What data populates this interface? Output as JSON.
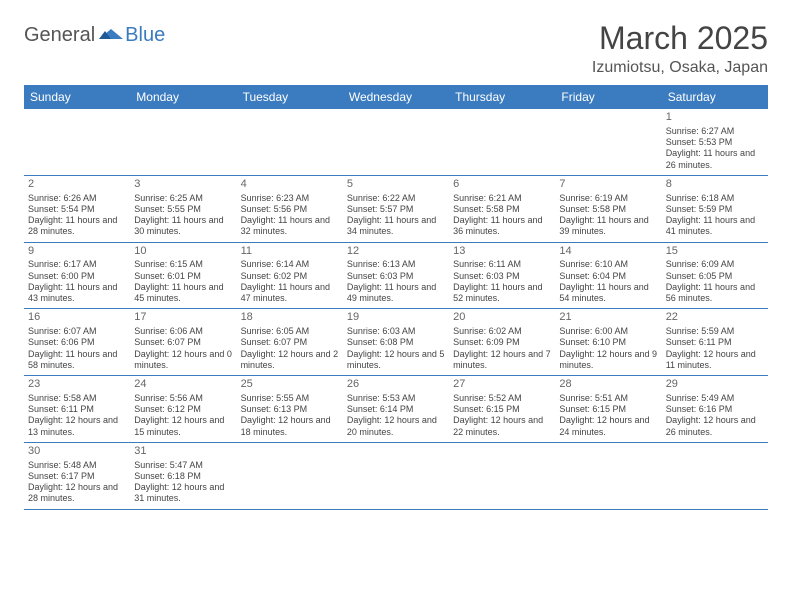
{
  "brand": {
    "general": "General",
    "blue": "Blue"
  },
  "header": {
    "month_title": "March 2025",
    "location": "Izumiotsu, Osaka, Japan"
  },
  "colors": {
    "header_bg": "#3b7bbf",
    "header_fg": "#ffffff",
    "cell_border": "#3b7bbf",
    "text": "#444444",
    "day_num": "#666666"
  },
  "typography": {
    "title_fontsize": 32,
    "location_fontsize": 16,
    "dayname_fontsize": 12,
    "cell_fontsize": 9
  },
  "day_names": [
    "Sunday",
    "Monday",
    "Tuesday",
    "Wednesday",
    "Thursday",
    "Friday",
    "Saturday"
  ],
  "weeks": [
    [
      null,
      null,
      null,
      null,
      null,
      null,
      {
        "n": "1",
        "sr": "Sunrise: 6:27 AM",
        "ss": "Sunset: 5:53 PM",
        "dl": "Daylight: 11 hours and 26 minutes."
      }
    ],
    [
      {
        "n": "2",
        "sr": "Sunrise: 6:26 AM",
        "ss": "Sunset: 5:54 PM",
        "dl": "Daylight: 11 hours and 28 minutes."
      },
      {
        "n": "3",
        "sr": "Sunrise: 6:25 AM",
        "ss": "Sunset: 5:55 PM",
        "dl": "Daylight: 11 hours and 30 minutes."
      },
      {
        "n": "4",
        "sr": "Sunrise: 6:23 AM",
        "ss": "Sunset: 5:56 PM",
        "dl": "Daylight: 11 hours and 32 minutes."
      },
      {
        "n": "5",
        "sr": "Sunrise: 6:22 AM",
        "ss": "Sunset: 5:57 PM",
        "dl": "Daylight: 11 hours and 34 minutes."
      },
      {
        "n": "6",
        "sr": "Sunrise: 6:21 AM",
        "ss": "Sunset: 5:58 PM",
        "dl": "Daylight: 11 hours and 36 minutes."
      },
      {
        "n": "7",
        "sr": "Sunrise: 6:19 AM",
        "ss": "Sunset: 5:58 PM",
        "dl": "Daylight: 11 hours and 39 minutes."
      },
      {
        "n": "8",
        "sr": "Sunrise: 6:18 AM",
        "ss": "Sunset: 5:59 PM",
        "dl": "Daylight: 11 hours and 41 minutes."
      }
    ],
    [
      {
        "n": "9",
        "sr": "Sunrise: 6:17 AM",
        "ss": "Sunset: 6:00 PM",
        "dl": "Daylight: 11 hours and 43 minutes."
      },
      {
        "n": "10",
        "sr": "Sunrise: 6:15 AM",
        "ss": "Sunset: 6:01 PM",
        "dl": "Daylight: 11 hours and 45 minutes."
      },
      {
        "n": "11",
        "sr": "Sunrise: 6:14 AM",
        "ss": "Sunset: 6:02 PM",
        "dl": "Daylight: 11 hours and 47 minutes."
      },
      {
        "n": "12",
        "sr": "Sunrise: 6:13 AM",
        "ss": "Sunset: 6:03 PM",
        "dl": "Daylight: 11 hours and 49 minutes."
      },
      {
        "n": "13",
        "sr": "Sunrise: 6:11 AM",
        "ss": "Sunset: 6:03 PM",
        "dl": "Daylight: 11 hours and 52 minutes."
      },
      {
        "n": "14",
        "sr": "Sunrise: 6:10 AM",
        "ss": "Sunset: 6:04 PM",
        "dl": "Daylight: 11 hours and 54 minutes."
      },
      {
        "n": "15",
        "sr": "Sunrise: 6:09 AM",
        "ss": "Sunset: 6:05 PM",
        "dl": "Daylight: 11 hours and 56 minutes."
      }
    ],
    [
      {
        "n": "16",
        "sr": "Sunrise: 6:07 AM",
        "ss": "Sunset: 6:06 PM",
        "dl": "Daylight: 11 hours and 58 minutes."
      },
      {
        "n": "17",
        "sr": "Sunrise: 6:06 AM",
        "ss": "Sunset: 6:07 PM",
        "dl": "Daylight: 12 hours and 0 minutes."
      },
      {
        "n": "18",
        "sr": "Sunrise: 6:05 AM",
        "ss": "Sunset: 6:07 PM",
        "dl": "Daylight: 12 hours and 2 minutes."
      },
      {
        "n": "19",
        "sr": "Sunrise: 6:03 AM",
        "ss": "Sunset: 6:08 PM",
        "dl": "Daylight: 12 hours and 5 minutes."
      },
      {
        "n": "20",
        "sr": "Sunrise: 6:02 AM",
        "ss": "Sunset: 6:09 PM",
        "dl": "Daylight: 12 hours and 7 minutes."
      },
      {
        "n": "21",
        "sr": "Sunrise: 6:00 AM",
        "ss": "Sunset: 6:10 PM",
        "dl": "Daylight: 12 hours and 9 minutes."
      },
      {
        "n": "22",
        "sr": "Sunrise: 5:59 AM",
        "ss": "Sunset: 6:11 PM",
        "dl": "Daylight: 12 hours and 11 minutes."
      }
    ],
    [
      {
        "n": "23",
        "sr": "Sunrise: 5:58 AM",
        "ss": "Sunset: 6:11 PM",
        "dl": "Daylight: 12 hours and 13 minutes."
      },
      {
        "n": "24",
        "sr": "Sunrise: 5:56 AM",
        "ss": "Sunset: 6:12 PM",
        "dl": "Daylight: 12 hours and 15 minutes."
      },
      {
        "n": "25",
        "sr": "Sunrise: 5:55 AM",
        "ss": "Sunset: 6:13 PM",
        "dl": "Daylight: 12 hours and 18 minutes."
      },
      {
        "n": "26",
        "sr": "Sunrise: 5:53 AM",
        "ss": "Sunset: 6:14 PM",
        "dl": "Daylight: 12 hours and 20 minutes."
      },
      {
        "n": "27",
        "sr": "Sunrise: 5:52 AM",
        "ss": "Sunset: 6:15 PM",
        "dl": "Daylight: 12 hours and 22 minutes."
      },
      {
        "n": "28",
        "sr": "Sunrise: 5:51 AM",
        "ss": "Sunset: 6:15 PM",
        "dl": "Daylight: 12 hours and 24 minutes."
      },
      {
        "n": "29",
        "sr": "Sunrise: 5:49 AM",
        "ss": "Sunset: 6:16 PM",
        "dl": "Daylight: 12 hours and 26 minutes."
      }
    ],
    [
      {
        "n": "30",
        "sr": "Sunrise: 5:48 AM",
        "ss": "Sunset: 6:17 PM",
        "dl": "Daylight: 12 hours and 28 minutes."
      },
      {
        "n": "31",
        "sr": "Sunrise: 5:47 AM",
        "ss": "Sunset: 6:18 PM",
        "dl": "Daylight: 12 hours and 31 minutes."
      },
      null,
      null,
      null,
      null,
      null
    ]
  ]
}
